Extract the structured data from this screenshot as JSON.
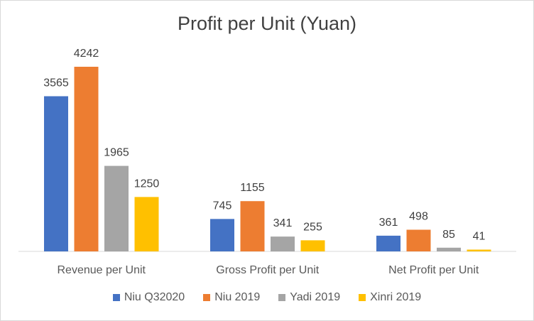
{
  "chart_data": {
    "type": "bar",
    "title": "Profit per Unit (Yuan)",
    "categories": [
      "Revenue per Unit",
      "Gross Profit per Unit",
      "Net Profit per Unit"
    ],
    "series": [
      {
        "name": "Niu Q32020",
        "color": "#4472c4",
        "values": [
          3565,
          745,
          361
        ]
      },
      {
        "name": "Niu 2019",
        "color": "#ed7d31",
        "values": [
          4242,
          1155,
          498
        ]
      },
      {
        "name": "Yadi 2019",
        "color": "#a5a5a5",
        "values": [
          1965,
          341,
          85
        ]
      },
      {
        "name": "Xinri 2019",
        "color": "#ffc000",
        "values": [
          1250,
          255,
          41
        ]
      }
    ],
    "ylim": [
      0,
      4242
    ],
    "grid": false,
    "legend": "bottom"
  }
}
